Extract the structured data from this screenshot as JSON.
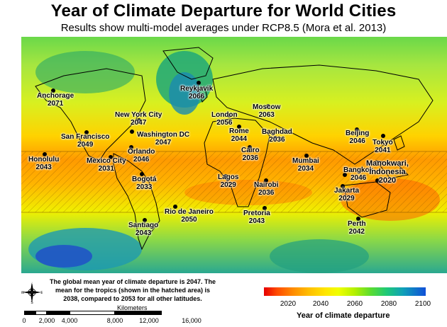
{
  "title": "Year of Climate Departure for World Cities",
  "subtitle": "Results show multi-model averages under RCP8.5 (Mora et al. 2013)",
  "cities": [
    {
      "name": "Anchorage",
      "year": "2071"
    },
    {
      "name": "Reykjavik",
      "year": "2066"
    },
    {
      "name": "Moscow",
      "year": "2063"
    },
    {
      "name": "London",
      "year": "2056"
    },
    {
      "name": "New York City",
      "year": "2047"
    },
    {
      "name": "Washington DC",
      "year": "2047"
    },
    {
      "name": "San Francisco",
      "year": "2049"
    },
    {
      "name": "Rome",
      "year": "2044"
    },
    {
      "name": "Baghdad",
      "year": "2036"
    },
    {
      "name": "Beijing",
      "year": "2046"
    },
    {
      "name": "Tokyo",
      "year": "2041"
    },
    {
      "name": "Honolulu",
      "year": "2043"
    },
    {
      "name": "Mexico City",
      "year": "2031"
    },
    {
      "name": "Orlando",
      "year": "2046"
    },
    {
      "name": "Cairo",
      "year": "2036"
    },
    {
      "name": "Mumbai",
      "year": "2034"
    },
    {
      "name": "Bangkok",
      "year": "2046"
    },
    {
      "name": "Manokwari,",
      "year": "2020",
      "sub": "Indonesia"
    },
    {
      "name": "Bogotá",
      "year": "2033"
    },
    {
      "name": "Lagos",
      "year": "2029"
    },
    {
      "name": "Nairobi",
      "year": "2036"
    },
    {
      "name": "Jakarta",
      "year": "2029"
    },
    {
      "name": "Rio de Janeiro",
      "year": "2050"
    },
    {
      "name": "Pretoria",
      "year": "2043"
    },
    {
      "name": "Santiago",
      "year": "2043"
    },
    {
      "name": "Perth",
      "year": "2042"
    }
  ],
  "note": "The global mean year of climate departure is 2047. The mean for the tropics (shown in the hatched area) is 2038, compared to 2053 for all other latitudes.",
  "scale": {
    "unit": "Kilometers",
    "ticks": [
      "0",
      "2,000",
      "4,000",
      "8,000",
      "12,000",
      "16,000"
    ]
  },
  "legend": {
    "title": "Year of climate departure",
    "ticks": [
      "2020",
      "2040",
      "2060",
      "2080",
      "2100"
    ],
    "colors": {
      "early": "#e60000",
      "mid": "#f0ff00",
      "late": "#1050d8"
    }
  },
  "compass_letters": [
    "N",
    "S",
    "E",
    "W"
  ]
}
